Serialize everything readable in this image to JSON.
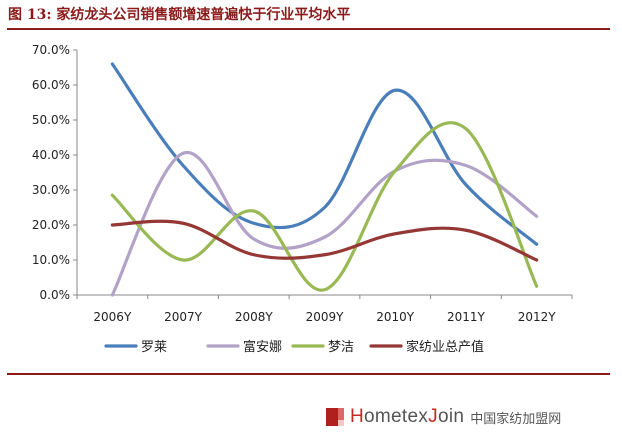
{
  "header": {
    "figure_label": "图 13:",
    "title": "家纺龙头公司销售额增速普遍快于行业平均水平"
  },
  "footer": {
    "brand_prefix_letter": "H",
    "brand_mid": "ometex",
    "brand_letter_j": "J",
    "brand_suffix": "oin",
    "brand_cn": "中国家纺加盟网"
  },
  "chart_data": {
    "type": "line",
    "categories": [
      "2006Y",
      "2007Y",
      "2008Y",
      "2009Y",
      "2010Y",
      "2011Y",
      "2012Y"
    ],
    "y_ticks": [
      "0.0%",
      "10.0%",
      "20.0%",
      "30.0%",
      "40.0%",
      "50.0%",
      "60.0%",
      "70.0%"
    ],
    "ylim": [
      0,
      70
    ],
    "smooth": true,
    "grid": false,
    "legend_position": "bottom",
    "series": [
      {
        "name": "罗莱",
        "color": "#4a7ebb",
        "values": [
          66,
          37,
          20.5,
          25,
          58.5,
          31.5,
          14.5
        ]
      },
      {
        "name": "富安娜",
        "color": "#b3a2c7",
        "values": [
          0,
          40.5,
          16,
          16.5,
          35.5,
          37,
          22.5
        ]
      },
      {
        "name": "梦洁",
        "color": "#98b954",
        "values": [
          28.5,
          10,
          24,
          1.5,
          35.5,
          47.5,
          2.5
        ]
      },
      {
        "name": "家纺业总产值",
        "color": "#953735",
        "values": [
          20,
          20.5,
          11.5,
          11.5,
          17.5,
          18.5,
          10
        ]
      }
    ]
  }
}
